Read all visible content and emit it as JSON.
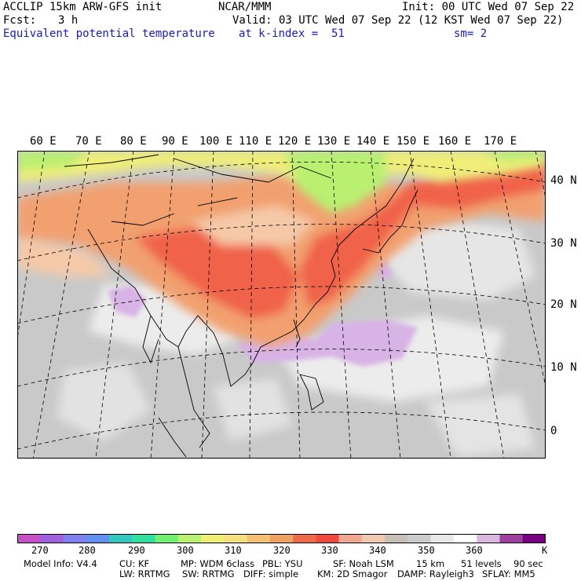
{
  "header": {
    "model": "ACCLIP 15km ARW-GFS init",
    "org": "NCAR/MMM",
    "init": "Init: 00 UTC Wed 07 Sep 22",
    "fcst_label": "Fcst:",
    "fcst_value": "3 h",
    "valid": "Valid: 03 UTC Wed 07 Sep 22 (12 KST Wed 07 Sep 22)",
    "field": "Equivalent potential temperature",
    "level": "at k-index =  51",
    "smooth": "sm= 2"
  },
  "map": {
    "lon_labels": [
      "60 E",
      "70 E",
      "80 E",
      "90 E",
      "100 E",
      "110 E",
      "120 E",
      "130 E",
      "140 E",
      "150 E",
      "160 E",
      "170 E"
    ],
    "lat_labels": [
      "40 N",
      "30 N",
      "20 N",
      "10 N",
      "0"
    ],
    "region": "Asia / Western Pacific",
    "colors": {
      "ocean_low": "#c8c8c8",
      "ocean_high": "#ececec",
      "warm1": "#f2a070",
      "warm2": "#f06248",
      "mid": "#f5c9a8",
      "cool": "#f0ee78",
      "green": "#b9f070",
      "lavender": "#d8b3e6"
    }
  },
  "colorbar": {
    "colors": [
      "#c750c8",
      "#a060e0",
      "#8080f0",
      "#6090f0",
      "#30c8c0",
      "#30e0a0",
      "#70f070",
      "#b8f070",
      "#f0f070",
      "#f5e080",
      "#f5c070",
      "#f0a060",
      "#f06a48",
      "#f04a40",
      "#f0a890",
      "#f0c8b0",
      "#c8c0b8",
      "#cccccc",
      "#e8e8e8",
      "#ffffff",
      "#dbb8e0",
      "#a040a0",
      "#780080"
    ],
    "labels": [
      "270",
      "280",
      "290",
      "300",
      "310",
      "320",
      "330",
      "340",
      "350",
      "360",
      "K"
    ]
  },
  "footer": {
    "line1": [
      "Model Info: V4.4",
      "CU: KF",
      "MP: WDM 6class",
      "PBL: YSU",
      "SF: Noah LSM",
      "15 km",
      "51 levels",
      "90 sec"
    ],
    "line2": [
      "LW: RRTMG",
      "SW: RRTMG",
      "DIFF: simple",
      "KM: 2D Smagor",
      "DAMP: Rayleigh3",
      "SFLAY: MM5"
    ]
  }
}
